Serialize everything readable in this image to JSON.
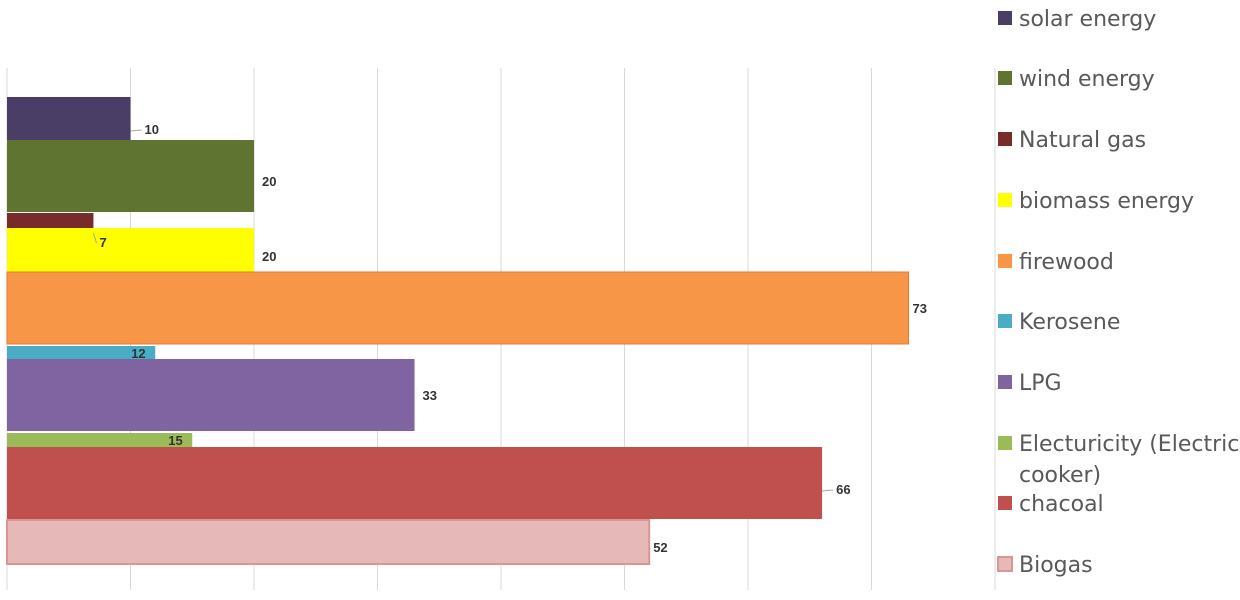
{
  "chart_data": {
    "type": "bar",
    "orientation": "horizontal",
    "title": "",
    "xlabel": "",
    "ylabel": "",
    "xlim": [
      0,
      80
    ],
    "grid": true,
    "legend_placement": "right",
    "series": [
      {
        "name": "solar energy",
        "value": 10,
        "color": "#4a3e66"
      },
      {
        "name": "wind energy",
        "value": 20,
        "color": "#5e7430"
      },
      {
        "name": "Natural gas",
        "value": 7,
        "color": "#772c2a"
      },
      {
        "name": "biomass energy",
        "value": 20,
        "color": "#ffff00"
      },
      {
        "name": "firewood",
        "value": 73,
        "color": "#f79646"
      },
      {
        "name": "Kerosene",
        "value": 12,
        "color": "#4bacc6"
      },
      {
        "name": "LPG",
        "value": 33,
        "color": "#8064a2"
      },
      {
        "name": "Electuricity (Electric cooker)",
        "legend_lines": [
          "Electuricity (Electric",
          "cooker)"
        ],
        "value": 15,
        "color": "#9bbb59"
      },
      {
        "name": "chacoal",
        "value": 66,
        "color": "#c0504d"
      },
      {
        "name": "Biogas",
        "value": 52,
        "color": "#e6b9b8"
      }
    ]
  }
}
